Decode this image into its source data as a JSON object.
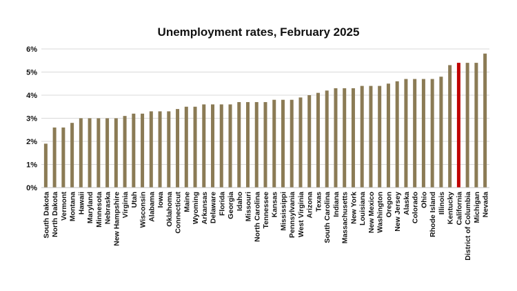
{
  "chart_data": {
    "type": "bar",
    "title": "Unemployment rates, February 2025",
    "xlabel": "",
    "ylabel": "",
    "ylim": [
      0,
      6
    ],
    "yticks": [
      "0%",
      "1%",
      "2%",
      "3%",
      "4%",
      "5%",
      "6%"
    ],
    "grid": true,
    "colors": {
      "bar": "#8b7b55",
      "highlight": "#c00000",
      "grid": "#d9d9d9"
    },
    "highlight": "California",
    "categories": [
      "South Dakota",
      "North Dakota",
      "Vermont",
      "Montana",
      "Hawaii",
      "Maryland",
      "Minnesota",
      "Nebraska",
      "New Hampshire",
      "Virginia",
      "Utah",
      "Wisconsin",
      "Alabama",
      "Iowa",
      "Oklahoma",
      "Connecticut",
      "Maine",
      "Wyoming",
      "Arkansas",
      "Delaware",
      "Florida",
      "Georgia",
      "Idaho",
      "Missouri",
      "North Carolina",
      "Tennessee",
      "Kansas",
      "Mississippi",
      "Pennsylvania",
      "West Virginia",
      "Arizona",
      "Texas",
      "South Carolina",
      "Indiana",
      "Massachusetts",
      "New York",
      "Louisiana",
      "New Mexico",
      "Washington",
      "Oregon",
      "New Jersey",
      "Alaska",
      "Colorado",
      "Ohio",
      "Rhode Island",
      "Illinois",
      "Kentucky",
      "California",
      "District of Columbia",
      "Michigan",
      "Nevada"
    ],
    "values": [
      1.9,
      2.6,
      2.6,
      2.8,
      3.0,
      3.0,
      3.0,
      3.0,
      3.0,
      3.1,
      3.2,
      3.2,
      3.3,
      3.3,
      3.3,
      3.4,
      3.5,
      3.5,
      3.6,
      3.6,
      3.6,
      3.6,
      3.7,
      3.7,
      3.7,
      3.7,
      3.8,
      3.8,
      3.8,
      3.9,
      4.0,
      4.1,
      4.2,
      4.3,
      4.3,
      4.3,
      4.4,
      4.4,
      4.4,
      4.5,
      4.6,
      4.7,
      4.7,
      4.7,
      4.7,
      4.8,
      5.3,
      5.4,
      5.4,
      5.4,
      5.8
    ]
  }
}
